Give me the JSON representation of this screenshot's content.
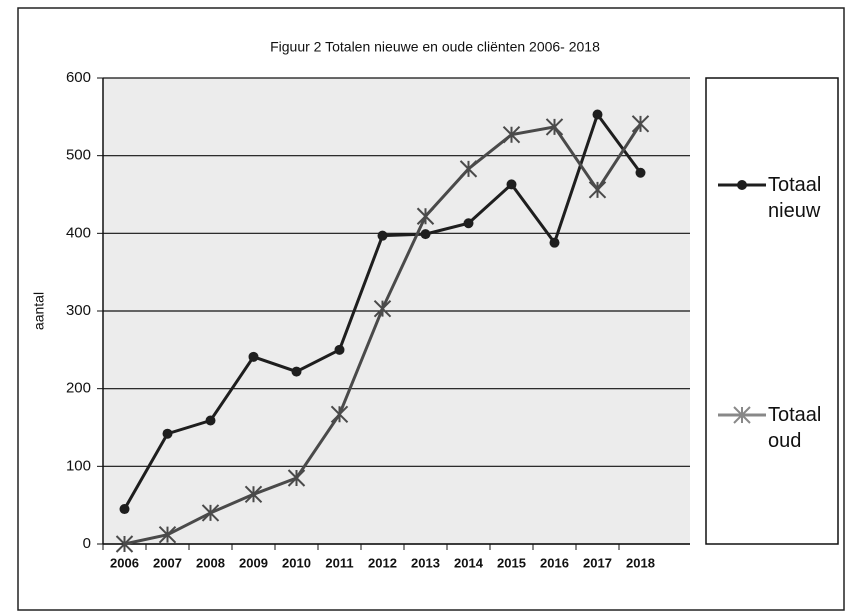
{
  "chart_data": {
    "type": "line",
    "title": "Figuur 2  Totalen nieuwe en oude cliënten 2006- 2018",
    "y_label": "aantal",
    "categories": [
      "2006",
      "2007",
      "2008",
      "2009",
      "2010",
      "2011",
      "2012",
      "2013",
      "2014",
      "2015",
      "2016",
      "2017",
      "2018"
    ],
    "series": [
      {
        "name": "Totaal nieuw",
        "color": "#1e1e1e",
        "marker": "circle",
        "values": [
          45,
          142,
          159,
          241,
          222,
          250,
          397,
          399,
          413,
          463,
          388,
          553,
          478
        ]
      },
      {
        "name": "Totaal oud",
        "color": "#4a4a4a",
        "marker": "star",
        "values": [
          0,
          12,
          40,
          64,
          85,
          167,
          303,
          422,
          483,
          527,
          537,
          456,
          541
        ]
      }
    ],
    "ylim": [
      0,
      600
    ],
    "yticks": [
      0,
      100,
      200,
      300,
      400,
      500,
      600
    ],
    "grid": true
  }
}
